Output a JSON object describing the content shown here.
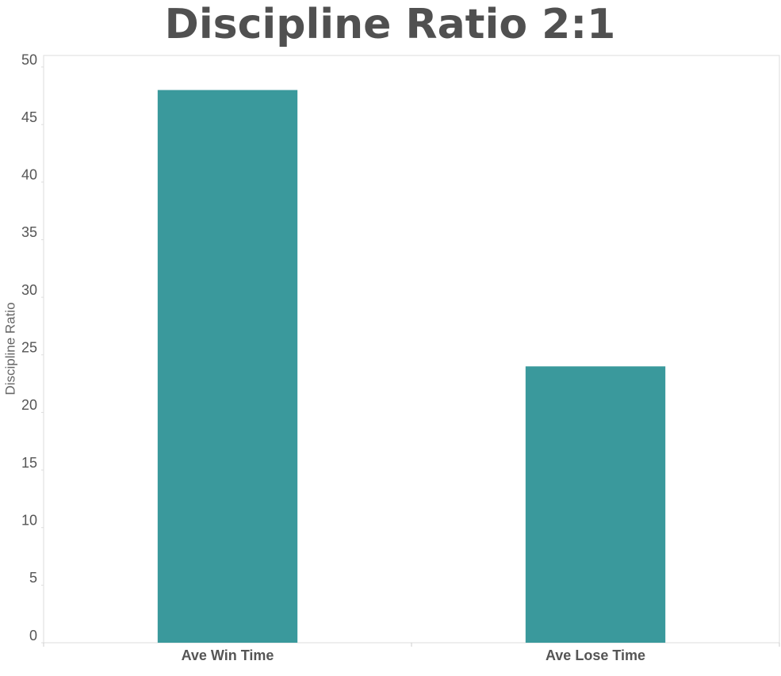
{
  "chart_data": {
    "type": "bar",
    "title": "Discipline Ratio 2:1",
    "y_label": "Discipline Ratio",
    "categories": [
      "Ave Win Time",
      "Ave Lose Time"
    ],
    "values": [
      48,
      24
    ],
    "color": "#3a999c",
    "ylim": [
      0,
      51
    ],
    "yticks": [
      0,
      5,
      10,
      15,
      20,
      25,
      30,
      35,
      40,
      45,
      50
    ],
    "grid": false
  }
}
